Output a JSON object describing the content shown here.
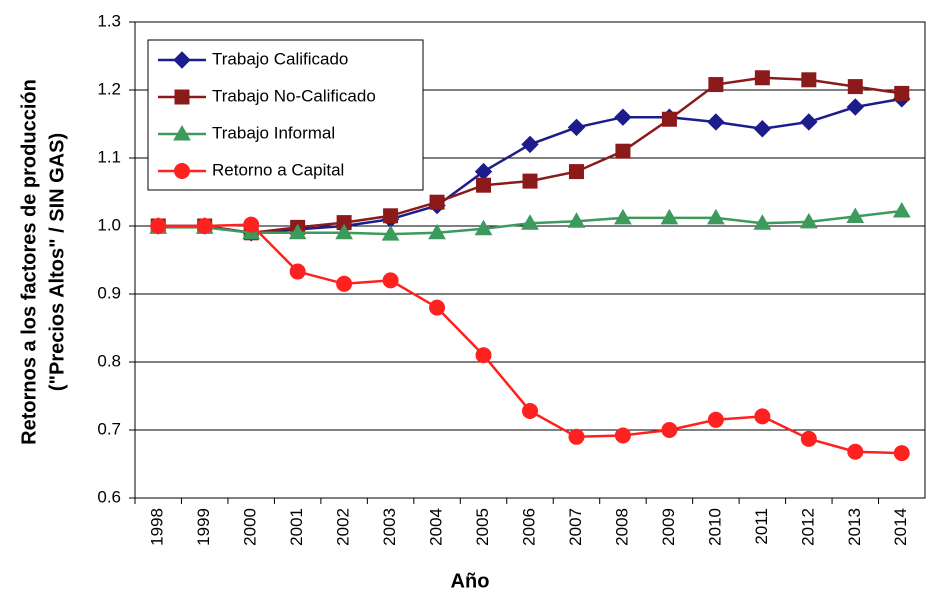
{
  "chart_data": {
    "type": "line",
    "ylabel": [
      "Retornos a los factores de producción",
      "(\"Precios Altos\" / SIN GAS)"
    ],
    "xlabel": "Año",
    "categories": [
      "1998",
      "1999",
      "2000",
      "2001",
      "2002",
      "2003",
      "2004",
      "2005",
      "2006",
      "2007",
      "2008",
      "2009",
      "2010",
      "2011",
      "2012",
      "2013",
      "2014"
    ],
    "series": [
      {
        "name": "Trabajo Calificado",
        "color": "#1c1c8c",
        "marker": "diamond",
        "values": [
          1.0,
          1.0,
          0.99,
          0.995,
          1.0,
          1.01,
          1.03,
          1.08,
          1.12,
          1.145,
          1.16,
          1.16,
          1.153,
          1.143,
          1.153,
          1.175,
          1.187
        ]
      },
      {
        "name": "Trabajo No-Calificado",
        "color": "#8b1a1a",
        "marker": "square",
        "values": [
          1.0,
          1.0,
          0.99,
          0.998,
          1.005,
          1.015,
          1.035,
          1.06,
          1.066,
          1.08,
          1.11,
          1.157,
          1.208,
          1.218,
          1.215,
          1.205,
          1.195
        ]
      },
      {
        "name": "Trabajo Informal",
        "color": "#3c9a5c",
        "marker": "triangle",
        "values": [
          0.998,
          0.998,
          0.99,
          0.99,
          0.99,
          0.988,
          0.99,
          0.996,
          1.004,
          1.007,
          1.012,
          1.012,
          1.012,
          1.004,
          1.006,
          1.014,
          1.022
        ]
      },
      {
        "name": "Retorno a Capital",
        "color": "#ff2020",
        "marker": "circle",
        "values": [
          1.0,
          1.0,
          1.002,
          0.933,
          0.915,
          0.92,
          0.88,
          0.81,
          0.728,
          0.69,
          0.692,
          0.7,
          0.715,
          0.72,
          0.687,
          0.668,
          0.666
        ]
      }
    ],
    "ylim": [
      0.6,
      1.3
    ],
    "yticks": [
      0.6,
      0.7,
      0.8,
      0.9,
      {
        "value": 1,
        "label": "1.0"
      },
      1.1,
      1.2,
      1.3
    ],
    "grid": true,
    "legend": "top-left"
  }
}
